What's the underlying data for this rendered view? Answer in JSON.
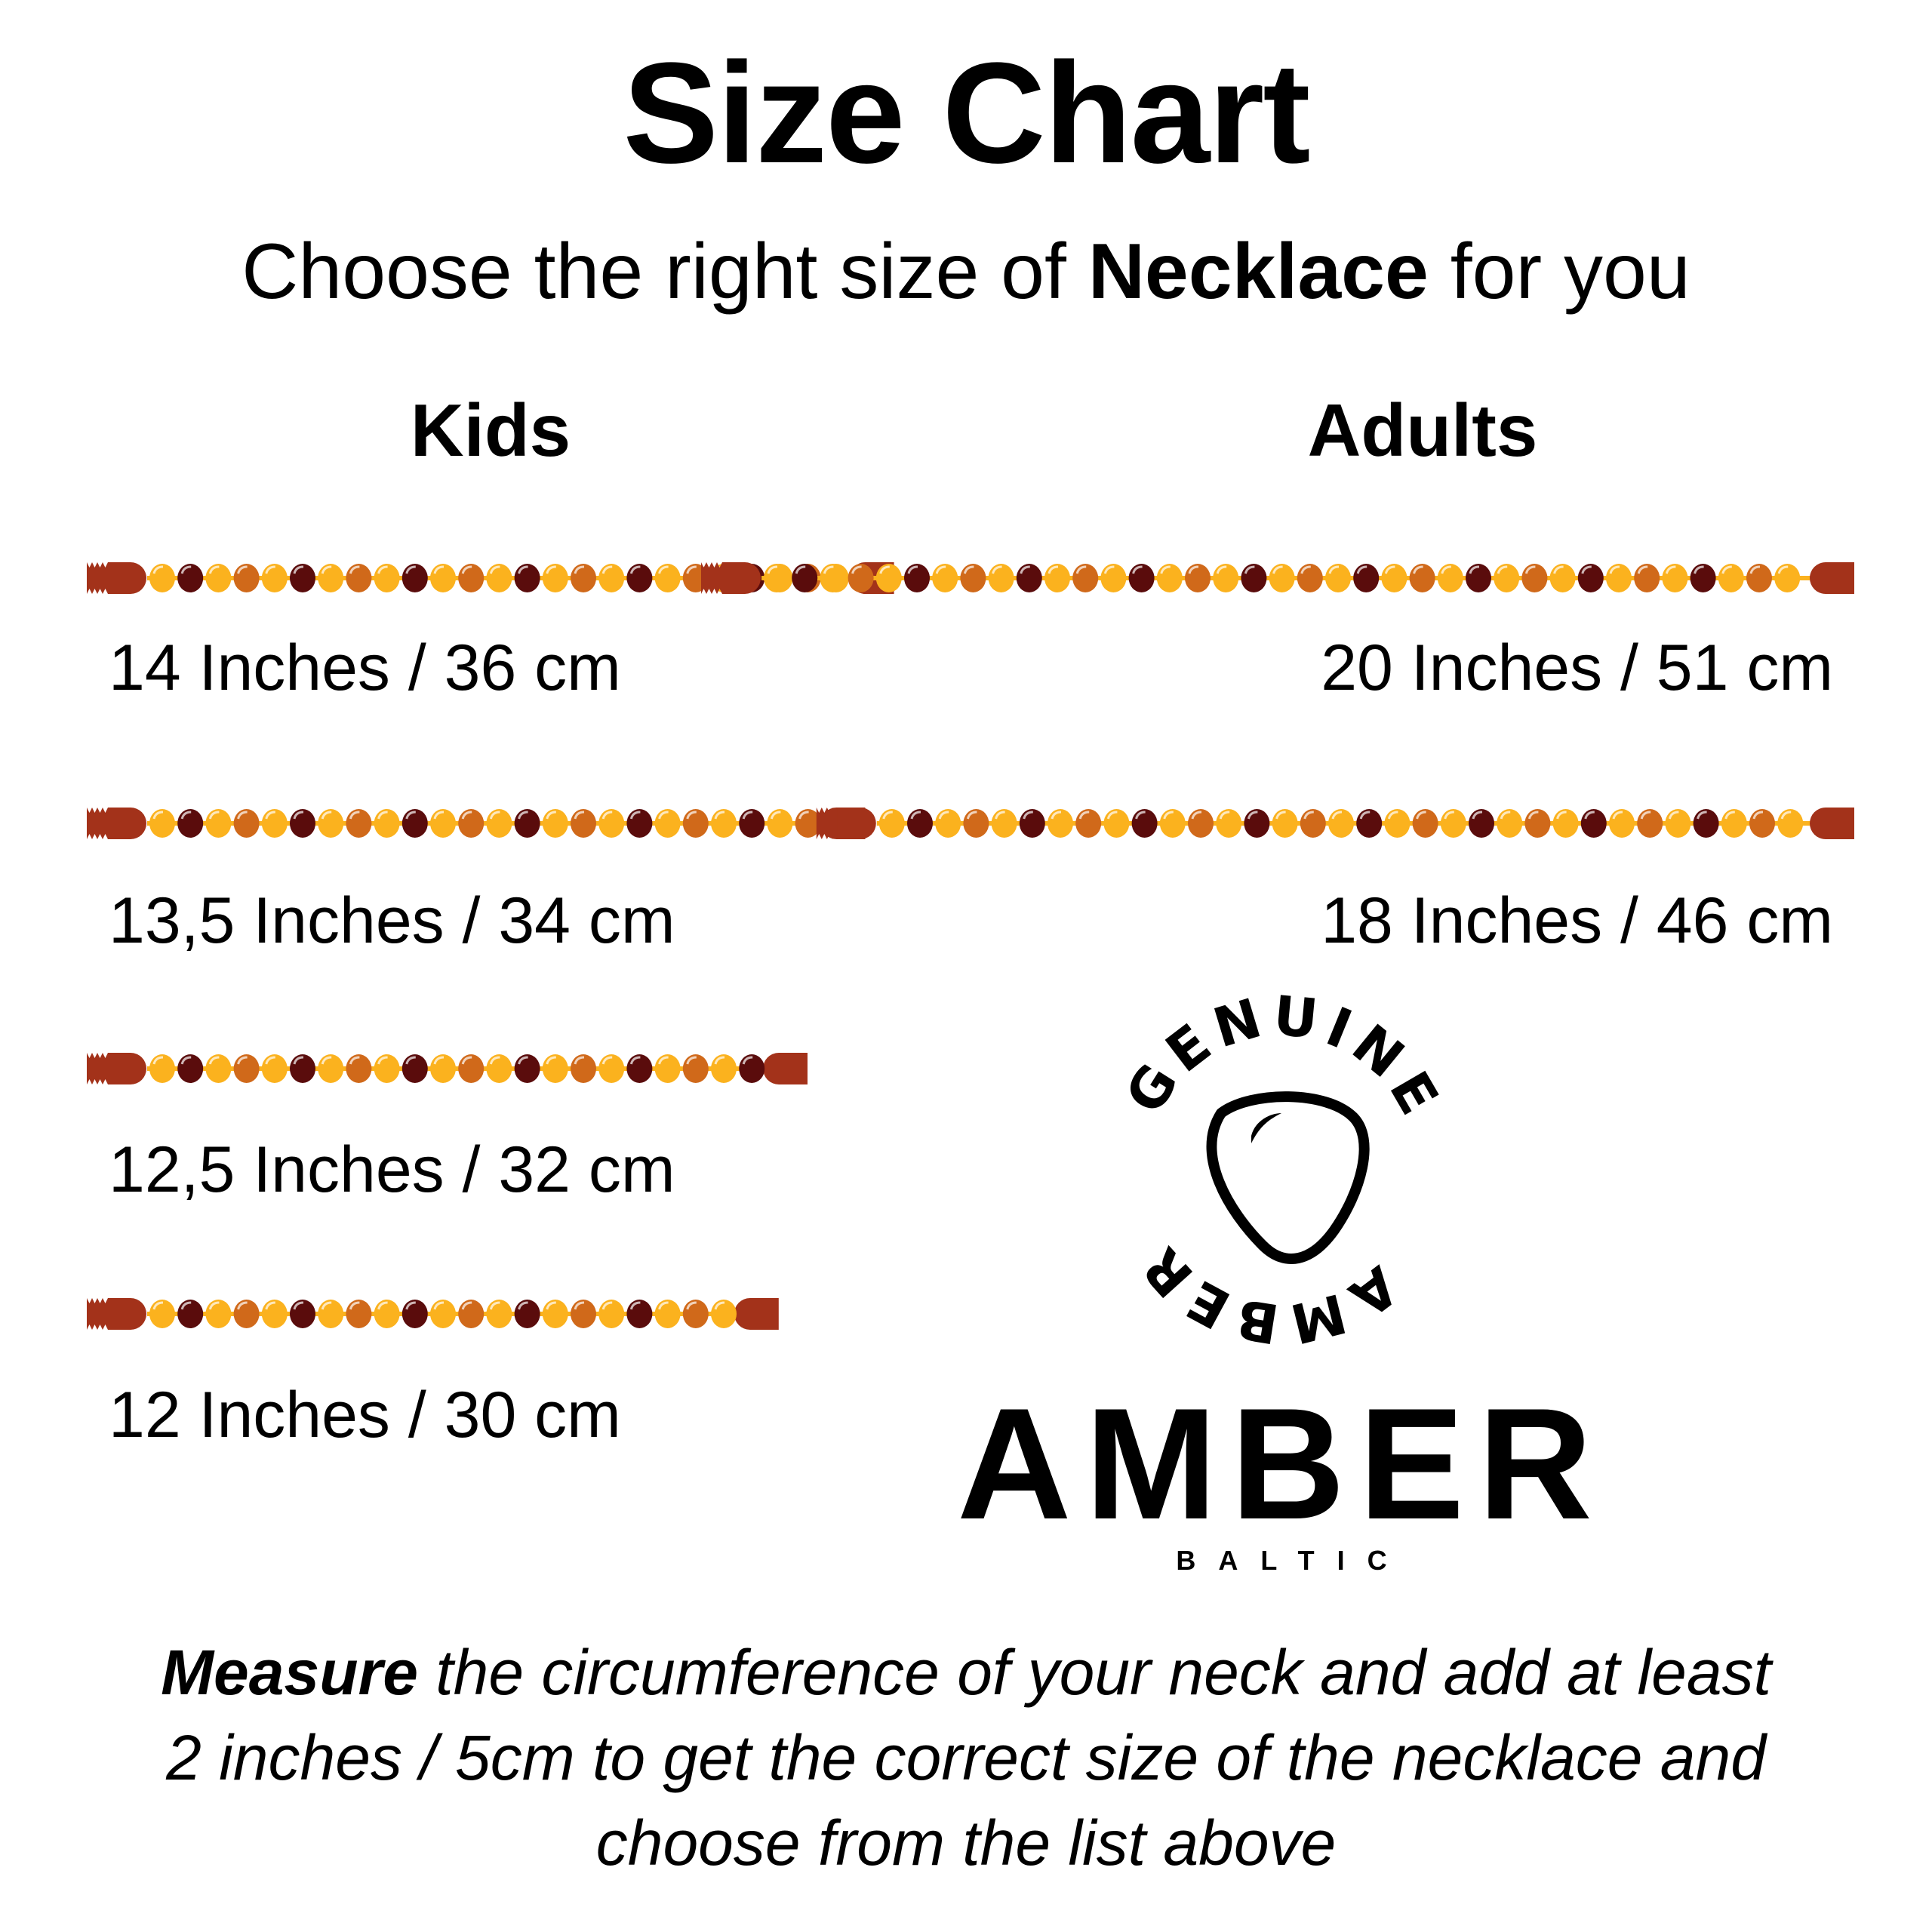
{
  "title": "Size Chart",
  "subtitle": {
    "before": "Choose the right size of ",
    "bold": "Necklace",
    "after": " for you"
  },
  "kids": {
    "heading": "Kids",
    "sizes": [
      {
        "label": "14 Inches / 36 cm",
        "inches": 14
      },
      {
        "label": "13,5 Inches / 34 cm",
        "inches": 13.5
      },
      {
        "label": "12,5 Inches / 32 cm",
        "inches": 12.5
      },
      {
        "label": "12 Inches / 30 cm",
        "inches": 12
      }
    ]
  },
  "adults": {
    "heading": "Adults",
    "sizes": [
      {
        "label": "20 Inches / 51 cm",
        "inches": 20
      },
      {
        "label": "18 Inches / 46 cm",
        "inches": 18
      }
    ]
  },
  "colors": {
    "bead_yellow": "#fbb21e",
    "bead_cherry": "#5a0c0c",
    "bead_cognac": "#d0691a",
    "clasp": "#a3321a"
  },
  "logo": {
    "arc_top": "GENUINE",
    "arc_bottom": "AMBER",
    "word": "AMBER",
    "sub": "BALTIC"
  },
  "footer": {
    "bold": "Measure",
    "line1": " the circumference of your neck and add at least",
    "line2": "2 inches / 5cm to get the correct size of the necklace  and",
    "line3": "choose from the list above"
  }
}
